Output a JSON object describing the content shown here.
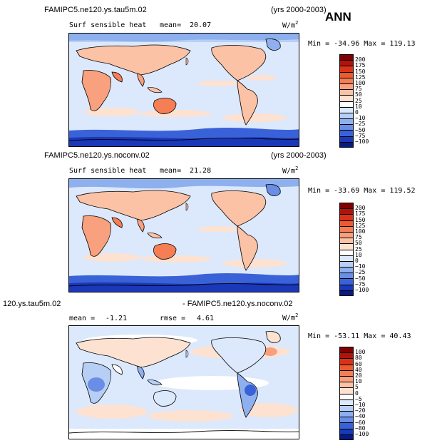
{
  "header": {
    "ann": "ANN"
  },
  "panels": [
    {
      "case_name": "FAMIPC5.ne120.ys.tau5m.02",
      "years": "(yrs 2000-2003)",
      "variable": "Surf sensible heat",
      "mean_label": "mean=",
      "mean_value": "20.07",
      "units": "W/m",
      "units_sup": "2",
      "minmax": "Min = -34.96 Max = 119.13",
      "colorbar": {
        "labels": [
          "200",
          "175",
          "150",
          "125",
          "100",
          "75",
          "50",
          "25",
          "10",
          "0",
          "−10",
          "−25",
          "−50",
          "−75",
          "−100"
        ],
        "colors": [
          "#7f0000",
          "#b2120b",
          "#d93218",
          "#ec5a2f",
          "#f57e55",
          "#f9a07e",
          "#fbc2a6",
          "#fde2d2",
          "#ffffff",
          "#dce8fb",
          "#b8cff5",
          "#8fb0ee",
          "#6a8ee6",
          "#3a62d8",
          "#1a38b8",
          "#061a85"
        ]
      }
    },
    {
      "case_name": "FAMIPC5.ne120.ys.noconv.02",
      "years": "(yrs 2000-2003)",
      "variable": "Surf sensible heat",
      "mean_label": "mean=",
      "mean_value": "21.28",
      "units": "W/m",
      "units_sup": "2",
      "minmax": "Min = -33.69 Max = 119.52",
      "colorbar": {
        "labels": [
          "200",
          "175",
          "150",
          "125",
          "100",
          "75",
          "50",
          "25",
          "10",
          "0",
          "−10",
          "−25",
          "−50",
          "−75",
          "−100"
        ],
        "colors": [
          "#7f0000",
          "#b2120b",
          "#d93218",
          "#ec5a2f",
          "#f57e55",
          "#f9a07e",
          "#fbc2a6",
          "#fde2d2",
          "#ffffff",
          "#dce8fb",
          "#b8cff5",
          "#8fb0ee",
          "#6a8ee6",
          "#3a62d8",
          "#1a38b8",
          "#061a85"
        ]
      }
    },
    {
      "case_left": "120.ys.tau5m.02",
      "case_right": "- FAMIPC5.ne120.ys.noconv.02",
      "mean_label": "mean =",
      "mean_value": "-1.21",
      "rmse_label": "rmse =",
      "rmse_value": "4.61",
      "units": "W/m",
      "units_sup": "2",
      "minmax": "Min = -53.11 Max =  40.43",
      "colorbar": {
        "labels": [
          "100",
          "80",
          "60",
          "40",
          "20",
          "10",
          "5",
          "0",
          "−5",
          "−10",
          "−20",
          "−40",
          "−60",
          "−80",
          "−100"
        ],
        "colors": [
          "#7f0000",
          "#b2120b",
          "#d93218",
          "#ec5a2f",
          "#f57e55",
          "#f9a07e",
          "#fbc2a6",
          "#fde2d2",
          "#ffffff",
          "#dce8fb",
          "#b8cff5",
          "#8fb0ee",
          "#6a8ee6",
          "#3a62d8",
          "#1a38b8",
          "#061a85"
        ]
      }
    }
  ]
}
